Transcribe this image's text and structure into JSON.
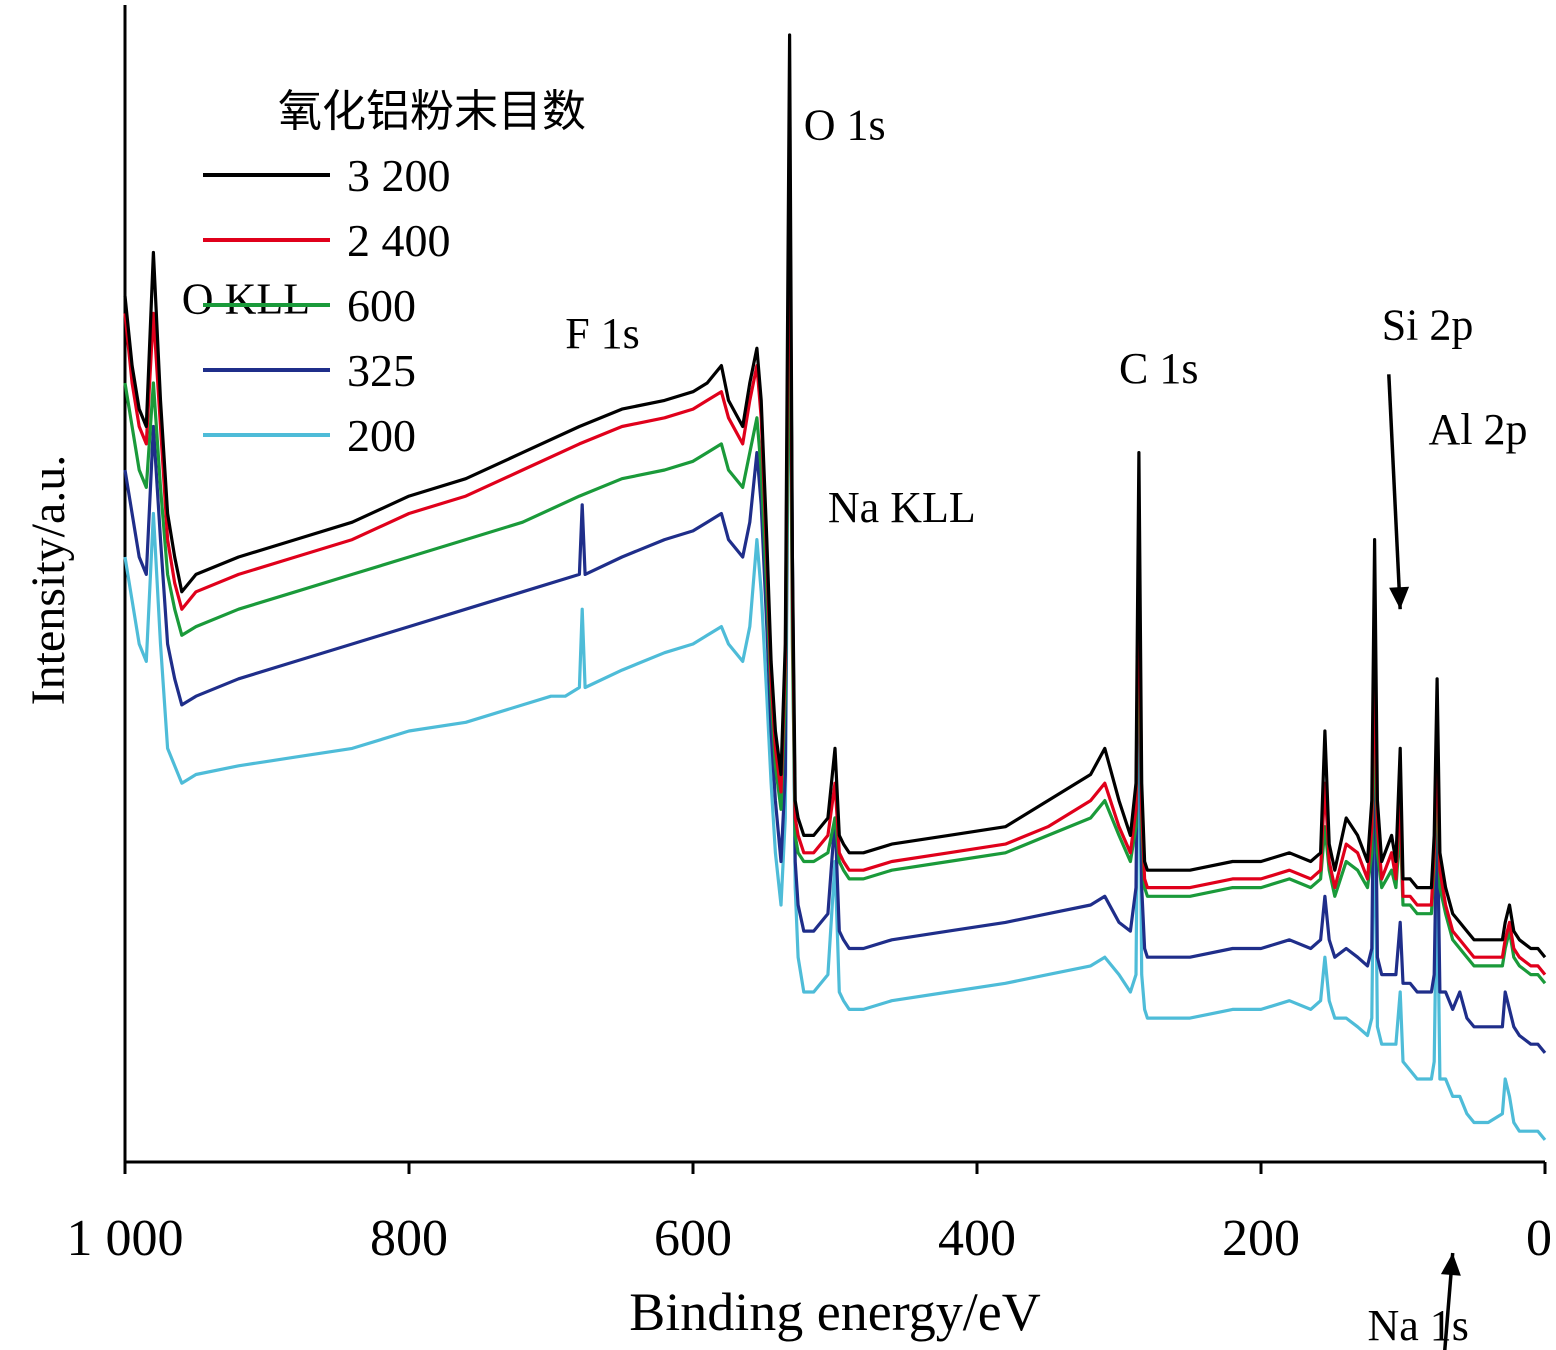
{
  "chart_data": {
    "type": "line",
    "xlabel": "Binding energy/eV",
    "ylabel": "Intensity/a.u.",
    "xlim": [
      1000,
      0
    ],
    "x_reversed": true,
    "y_ticks_shown": false,
    "grid": false,
    "x_ticks": [
      1000,
      800,
      600,
      400,
      200,
      0
    ],
    "x_tick_labels": [
      "1 000",
      "800",
      "600",
      "400",
      "200",
      "0"
    ],
    "legend": {
      "title": "氧化铝粉末目数",
      "placement": "top-left"
    },
    "series": [
      {
        "name": "3 200",
        "color": "#000000",
        "x": [
          1000,
          995,
          990,
          985,
          980,
          975,
          970,
          965,
          960,
          950,
          920,
          880,
          840,
          800,
          760,
          720,
          680,
          650,
          620,
          600,
          590,
          580,
          575,
          565,
          560,
          555,
          552,
          548,
          545,
          542,
          538,
          535,
          532,
          530,
          528,
          526,
          522,
          515,
          505,
          500,
          497,
          494,
          490,
          480,
          460,
          420,
          380,
          350,
          320,
          310,
          300,
          292,
          288,
          286,
          284,
          282,
          280,
          276,
          270,
          250,
          220,
          200,
          180,
          165,
          158,
          155,
          152,
          148,
          140,
          132,
          125,
          122,
          120,
          118,
          115,
          108,
          105,
          102,
          100,
          95,
          90,
          85,
          80,
          78,
          76,
          74,
          70,
          65,
          60,
          55,
          50,
          40,
          30,
          28,
          25,
          22,
          18,
          10,
          5,
          0
        ],
        "y": [
          70,
          62,
          57,
          55,
          75,
          58,
          45,
          40,
          36,
          38,
          40,
          42,
          44,
          47,
          49,
          52,
          55,
          57,
          58,
          59,
          60,
          62,
          58,
          55,
          60,
          64,
          58,
          42,
          28,
          20,
          15,
          30,
          100,
          40,
          12,
          10,
          8,
          8,
          10,
          18,
          8,
          7,
          6,
          6,
          7,
          8,
          9,
          12,
          15,
          18,
          12,
          8,
          14,
          52,
          14,
          5,
          4,
          4,
          4,
          4,
          5,
          5,
          6,
          5,
          6,
          20,
          7,
          4,
          10,
          8,
          5,
          12,
          42,
          12,
          5,
          8,
          5,
          18,
          3,
          3,
          2,
          2,
          2,
          8,
          26,
          6,
          2,
          -1,
          -2,
          -3,
          -4,
          -4,
          -4,
          -2,
          0,
          -3,
          -4,
          -5,
          -5,
          -6
        ]
      },
      {
        "name": "2 400",
        "color": "#e0001b",
        "x": [
          1000,
          995,
          990,
          985,
          980,
          975,
          970,
          965,
          960,
          950,
          920,
          880,
          840,
          800,
          760,
          720,
          680,
          650,
          620,
          600,
          590,
          580,
          575,
          565,
          560,
          555,
          552,
          548,
          545,
          542,
          538,
          535,
          532,
          530,
          528,
          526,
          522,
          515,
          505,
          500,
          497,
          494,
          490,
          480,
          460,
          420,
          380,
          350,
          320,
          310,
          300,
          292,
          288,
          286,
          284,
          282,
          280,
          276,
          270,
          250,
          220,
          200,
          180,
          165,
          158,
          155,
          152,
          148,
          140,
          132,
          125,
          122,
          120,
          118,
          115,
          108,
          105,
          102,
          100,
          95,
          90,
          85,
          80,
          78,
          76,
          74,
          70,
          65,
          60,
          55,
          50,
          40,
          30,
          28,
          25,
          22,
          18,
          10,
          5,
          0
        ],
        "y": [
          68,
          60,
          55,
          53,
          68,
          55,
          42,
          37,
          34,
          36,
          38,
          40,
          42,
          45,
          47,
          50,
          53,
          55,
          56,
          57,
          58,
          59,
          56,
          53,
          58,
          62,
          56,
          40,
          26,
          18,
          13,
          28,
          90,
          36,
          10,
          8,
          6,
          6,
          8,
          14,
          6,
          5,
          4,
          4,
          5,
          6,
          7,
          9,
          12,
          14,
          9,
          6,
          11,
          44,
          11,
          3,
          2,
          2,
          2,
          2,
          3,
          3,
          4,
          3,
          4,
          14,
          5,
          2,
          7,
          6,
          3,
          9,
          30,
          9,
          3,
          6,
          3,
          13,
          1,
          1,
          0,
          0,
          0,
          6,
          20,
          4,
          0,
          -3,
          -4,
          -5,
          -6,
          -6,
          -6,
          -4,
          -2,
          -5,
          -6,
          -7,
          -7,
          -8
        ]
      },
      {
        "name": "600",
        "color": "#1a9a3a",
        "x": [
          1000,
          995,
          990,
          985,
          980,
          975,
          970,
          965,
          960,
          950,
          920,
          880,
          840,
          800,
          760,
          720,
          680,
          650,
          620,
          600,
          590,
          580,
          575,
          565,
          560,
          555,
          552,
          548,
          545,
          542,
          538,
          535,
          532,
          530,
          528,
          526,
          522,
          515,
          505,
          500,
          497,
          494,
          490,
          480,
          460,
          420,
          380,
          350,
          320,
          310,
          300,
          292,
          288,
          286,
          284,
          282,
          280,
          276,
          270,
          250,
          220,
          200,
          180,
          165,
          158,
          155,
          152,
          148,
          140,
          132,
          125,
          122,
          120,
          118,
          115,
          108,
          105,
          102,
          100,
          95,
          90,
          85,
          80,
          78,
          76,
          74,
          70,
          65,
          60,
          55,
          50,
          40,
          30,
          28,
          25,
          22,
          18,
          10,
          5,
          0
        ],
        "y": [
          60,
          55,
          50,
          48,
          60,
          48,
          38,
          34,
          31,
          32,
          34,
          36,
          38,
          40,
          42,
          44,
          47,
          49,
          50,
          51,
          52,
          53,
          50,
          48,
          52,
          56,
          50,
          36,
          24,
          16,
          11,
          24,
          75,
          30,
          8,
          6,
          5,
          5,
          6,
          10,
          5,
          4,
          3,
          3,
          4,
          5,
          6,
          8,
          10,
          12,
          8,
          5,
          9,
          36,
          9,
          2,
          1,
          1,
          1,
          1,
          2,
          2,
          3,
          2,
          3,
          9,
          4,
          1,
          5,
          4,
          2,
          6,
          24,
          6,
          2,
          4,
          2,
          9,
          0,
          0,
          -1,
          -1,
          -1,
          4,
          16,
          2,
          -1,
          -4,
          -5,
          -6,
          -7,
          -7,
          -7,
          -5,
          -3,
          -6,
          -7,
          -8,
          -8,
          -9
        ]
      },
      {
        "name": "325",
        "color": "#1f2e8a",
        "x": [
          1000,
          995,
          990,
          985,
          980,
          975,
          970,
          965,
          960,
          950,
          920,
          880,
          840,
          800,
          760,
          720,
          680,
          678,
          676,
          650,
          620,
          600,
          590,
          580,
          575,
          565,
          560,
          555,
          552,
          548,
          545,
          542,
          538,
          535,
          532,
          530,
          528,
          526,
          522,
          515,
          505,
          500,
          497,
          494,
          490,
          480,
          460,
          420,
          380,
          350,
          320,
          310,
          300,
          292,
          288,
          286,
          284,
          282,
          280,
          276,
          270,
          250,
          220,
          200,
          180,
          165,
          158,
          155,
          152,
          148,
          140,
          132,
          125,
          122,
          120,
          118,
          115,
          108,
          105,
          102,
          100,
          95,
          90,
          85,
          80,
          78,
          76,
          74,
          70,
          65,
          60,
          55,
          50,
          40,
          30,
          28,
          25,
          22,
          18,
          10,
          5,
          0
        ],
        "y": [
          50,
          45,
          40,
          38,
          55,
          42,
          30,
          26,
          23,
          24,
          26,
          28,
          30,
          32,
          34,
          36,
          38,
          46,
          38,
          40,
          42,
          43,
          44,
          45,
          42,
          40,
          44,
          52,
          46,
          32,
          20,
          12,
          5,
          15,
          85,
          40,
          5,
          0,
          -3,
          -3,
          -1,
          10,
          -3,
          -4,
          -5,
          -5,
          -4,
          -3,
          -2,
          -1,
          0,
          1,
          -2,
          -3,
          2,
          40,
          2,
          -5,
          -6,
          -6,
          -6,
          -6,
          -5,
          -5,
          -4,
          -5,
          -4,
          1,
          -4,
          -6,
          -5,
          -6,
          -7,
          -5,
          25,
          -6,
          -8,
          -8,
          -8,
          -2,
          -9,
          -9,
          -10,
          -10,
          -10,
          -8,
          12,
          -10,
          -10,
          -12,
          -10,
          -13,
          -14,
          -14,
          -14,
          -10,
          -12,
          -14,
          -15,
          -16,
          -16,
          -17
        ]
      },
      {
        "name": "200",
        "color": "#4ebcd8",
        "x": [
          1000,
          995,
          990,
          985,
          980,
          975,
          970,
          965,
          960,
          950,
          920,
          880,
          840,
          800,
          760,
          720,
          700,
          690,
          680,
          678,
          676,
          650,
          620,
          600,
          590,
          580,
          575,
          565,
          560,
          555,
          552,
          548,
          545,
          542,
          538,
          535,
          532,
          530,
          528,
          526,
          522,
          515,
          505,
          500,
          497,
          494,
          490,
          480,
          460,
          420,
          380,
          350,
          320,
          310,
          300,
          292,
          288,
          286,
          284,
          282,
          280,
          276,
          270,
          250,
          220,
          200,
          180,
          165,
          158,
          155,
          152,
          148,
          140,
          132,
          125,
          122,
          120,
          118,
          115,
          108,
          105,
          102,
          100,
          95,
          90,
          85,
          80,
          78,
          76,
          74,
          70,
          65,
          60,
          55,
          50,
          40,
          30,
          28,
          25,
          22,
          18,
          10,
          5,
          0
        ],
        "y": [
          40,
          35,
          30,
          28,
          45,
          30,
          18,
          16,
          14,
          15,
          16,
          17,
          18,
          20,
          21,
          23,
          24,
          24,
          25,
          34,
          25,
          27,
          29,
          30,
          31,
          32,
          30,
          28,
          32,
          42,
          36,
          24,
          14,
          6,
          0,
          10,
          80,
          35,
          2,
          -6,
          -10,
          -10,
          -8,
          5,
          -10,
          -11,
          -12,
          -12,
          -11,
          -10,
          -9,
          -8,
          -7,
          -6,
          -8,
          -10,
          -8,
          30,
          -8,
          -12,
          -13,
          -13,
          -13,
          -13,
          -12,
          -12,
          -11,
          -12,
          -11,
          -6,
          -11,
          -13,
          -13,
          -14,
          -15,
          -13,
          15,
          -14,
          -16,
          -16,
          -16,
          -10,
          -18,
          -19,
          -20,
          -20,
          -20,
          -18,
          5,
          -20,
          -20,
          -22,
          -22,
          -24,
          -25,
          -25,
          -24,
          -20,
          -22,
          -25,
          -26,
          -26,
          -26,
          -27
        ]
      }
    ],
    "annotations": [
      {
        "text": "O 1s",
        "x": 522,
        "y": 88
      },
      {
        "text": "O KLL",
        "x": 960,
        "y": 68
      },
      {
        "text": "F 1s",
        "x": 690,
        "y": 64
      },
      {
        "text": "Na KLL",
        "x": 505,
        "y": 44
      },
      {
        "text": "C 1s",
        "x": 300,
        "y": 60
      },
      {
        "text": "Si 2p",
        "x": 115,
        "y": 65
      },
      {
        "text": "Al 2p",
        "x": 82,
        "y": 53
      },
      {
        "text": "Na 1s",
        "x": 125,
        "y": -50
      }
    ],
    "arrows": [
      {
        "label": "Si 2p",
        "from": [
          110,
          61
        ],
        "to": [
          102,
          34
        ]
      },
      {
        "label": "Na 1s",
        "from": [
          72,
          -54
        ],
        "to": [
          65,
          -40
        ]
      }
    ]
  }
}
